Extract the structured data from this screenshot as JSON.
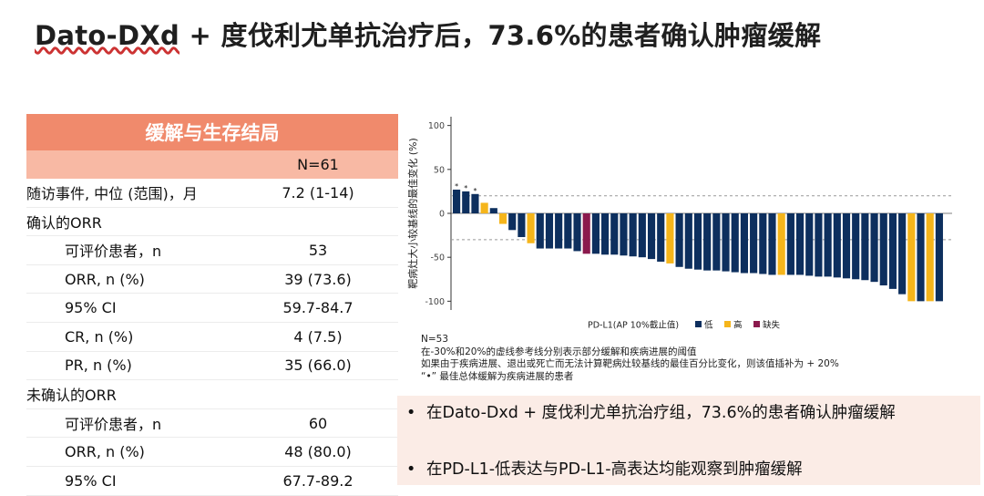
{
  "title": {
    "brand": "Dato-DXd",
    "rest": " + 度伐利尤单抗治疗后，73.6%的患者确认肿瘤缓解"
  },
  "table": {
    "header": "缓解与生存结局",
    "col_header": "N=61",
    "rows": [
      {
        "label": "随访事件, 中位 (范围)，月",
        "value": "7.2 (1-14)",
        "type": "plain"
      },
      {
        "label": "确认的ORR",
        "value": "",
        "type": "section"
      },
      {
        "label": "可评价患者，n",
        "value": "53",
        "type": "indent"
      },
      {
        "label": "ORR, n (%)",
        "value": "39 (73.6)",
        "type": "indent"
      },
      {
        "label": "95% CI",
        "value": "59.7-84.7",
        "type": "indent"
      },
      {
        "label": "CR, n (%)",
        "value": "4 (7.5)",
        "type": "indent"
      },
      {
        "label": "PR, n (%)",
        "value": "35 (66.0)",
        "type": "indent"
      },
      {
        "label": "未确认的ORR",
        "value": "",
        "type": "section"
      },
      {
        "label": "可评价患者，n",
        "value": "60",
        "type": "indent"
      },
      {
        "label": "ORR, n (%)",
        "value": "48 (80.0)",
        "type": "indent"
      },
      {
        "label": "95% CI",
        "value": "67.7-89.2",
        "type": "indent"
      }
    ]
  },
  "chart_data": {
    "type": "bar",
    "title": "",
    "ylabel": "靶病灶大小较基线的最佳变化 (%)",
    "xlabel": "",
    "ylim": [
      -110,
      110
    ],
    "yticks": [
      100,
      50,
      0,
      -50,
      -100
    ],
    "reference_lines": [
      20,
      -30
    ],
    "legend": {
      "title": "PD-L1(AP 10%截止值)",
      "placement": "bottom",
      "entries": [
        {
          "key": "low",
          "name": "低",
          "color": "#0d2f5e"
        },
        {
          "key": "high",
          "name": "高",
          "color": "#f5b51b"
        },
        {
          "key": "missing",
          "name": "缺失",
          "color": "#8b1a4d"
        }
      ]
    },
    "star_marker": "*",
    "values": [
      27,
      25,
      22,
      12,
      6,
      -12,
      -19,
      -27,
      -34,
      -40,
      -40,
      -40,
      -40,
      -43,
      -46,
      -46,
      -47,
      -47,
      -48,
      -49,
      -50,
      -52,
      -55,
      -57,
      -61,
      -63,
      -64,
      -65,
      -65,
      -66,
      -67,
      -68,
      -68,
      -69,
      -70,
      -70,
      -70,
      -70,
      -71,
      -72,
      -72,
      -73,
      -74,
      -75,
      -76,
      -78,
      -82,
      -86,
      -92,
      -100,
      -100,
      -100,
      -100
    ],
    "groups": [
      "low",
      "low",
      "low",
      "high",
      "low",
      "high",
      "low",
      "low",
      "high",
      "low",
      "low",
      "low",
      "low",
      "low",
      "missing",
      "low",
      "low",
      "low",
      "low",
      "low",
      "low",
      "low",
      "low",
      "high",
      "low",
      "low",
      "low",
      "low",
      "low",
      "low",
      "low",
      "low",
      "low",
      "low",
      "low",
      "high",
      "low",
      "low",
      "low",
      "low",
      "low",
      "low",
      "low",
      "low",
      "low",
      "low",
      "low",
      "low",
      "low",
      "high",
      "low",
      "high",
      "low"
    ],
    "starred": [
      0,
      1,
      2
    ]
  },
  "chart_notes": {
    "n": "N=53",
    "line1": "在-30%和20%的虚线参考线分别表示部分缓解和疾病进展的阈值",
    "line2": "如果由于疾病进展、退出或死亡而无法计算靶病灶较基线的最佳百分比变化，则该值插补为 + 20%",
    "line3_marker": "“•”",
    "line3": "最佳总体缓解为疾病进展的患者"
  },
  "bullets": [
    "在Dato-Dxd + 度伐利尤单抗治疗组，73.6%的患者确认肿瘤缓解",
    "在PD-L1-低表达与PD-L1-高表达均能观察到肿瘤缓解"
  ]
}
